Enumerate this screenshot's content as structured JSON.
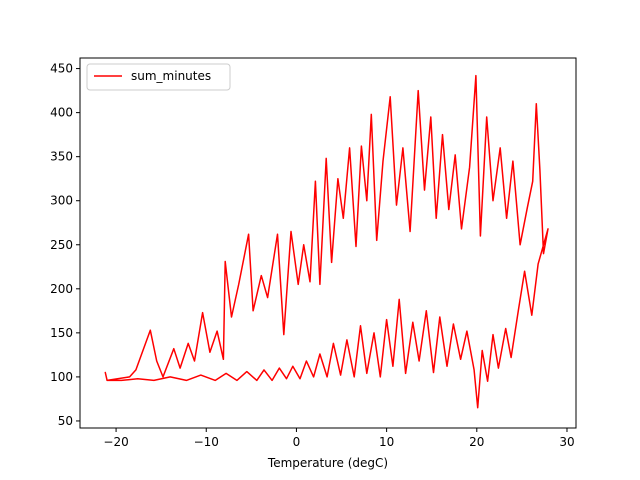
{
  "chart_data": {
    "type": "line",
    "title": "",
    "xlabel": "Temperature (degC)",
    "ylabel": "",
    "xlim": [
      -24,
      31
    ],
    "ylim": [
      42,
      462
    ],
    "xticks": [
      -20,
      -10,
      0,
      10,
      20,
      30
    ],
    "yticks": [
      50,
      100,
      150,
      200,
      250,
      300,
      350,
      400,
      450
    ],
    "xtick_labels": [
      "−20",
      "−10",
      "0",
      "10",
      "20",
      "30"
    ],
    "ytick_labels": [
      "50",
      "100",
      "150",
      "200",
      "250",
      "300",
      "350",
      "400",
      "450"
    ],
    "grid": false,
    "legend": {
      "position": "top-left",
      "entries": [
        "sum_minutes"
      ]
    },
    "series": [
      {
        "name": "sum_minutes",
        "color": "#ff0000",
        "points": [
          [
            -21.2,
            105
          ],
          [
            -21.0,
            96
          ],
          [
            -18.5,
            100
          ],
          [
            -17.8,
            108
          ],
          [
            -16.2,
            153
          ],
          [
            -15.5,
            118
          ],
          [
            -14.8,
            100
          ],
          [
            -13.6,
            132
          ],
          [
            -12.9,
            110
          ],
          [
            -12.0,
            138
          ],
          [
            -11.3,
            118
          ],
          [
            -10.4,
            173
          ],
          [
            -9.6,
            128
          ],
          [
            -8.8,
            152
          ],
          [
            -8.1,
            120
          ],
          [
            -7.9,
            231
          ],
          [
            -7.2,
            168
          ],
          [
            -6.4,
            205
          ],
          [
            -5.3,
            262
          ],
          [
            -4.8,
            175
          ],
          [
            -3.9,
            215
          ],
          [
            -3.2,
            190
          ],
          [
            -2.1,
            262
          ],
          [
            -1.4,
            148
          ],
          [
            -0.6,
            265
          ],
          [
            0.2,
            205
          ],
          [
            0.8,
            250
          ],
          [
            1.5,
            208
          ],
          [
            2.1,
            322
          ],
          [
            2.6,
            205
          ],
          [
            3.3,
            348
          ],
          [
            3.9,
            230
          ],
          [
            4.6,
            325
          ],
          [
            5.2,
            280
          ],
          [
            5.9,
            360
          ],
          [
            6.6,
            248
          ],
          [
            7.2,
            362
          ],
          [
            7.8,
            300
          ],
          [
            8.3,
            398
          ],
          [
            8.9,
            255
          ],
          [
            9.6,
            345
          ],
          [
            10.4,
            418
          ],
          [
            11.1,
            295
          ],
          [
            11.8,
            360
          ],
          [
            12.6,
            265
          ],
          [
            13.5,
            425
          ],
          [
            14.2,
            312
          ],
          [
            14.9,
            395
          ],
          [
            15.5,
            280
          ],
          [
            16.2,
            375
          ],
          [
            16.9,
            290
          ],
          [
            17.6,
            352
          ],
          [
            18.3,
            268
          ],
          [
            19.2,
            338
          ],
          [
            19.9,
            442
          ],
          [
            20.4,
            260
          ],
          [
            21.1,
            395
          ],
          [
            21.8,
            300
          ],
          [
            22.6,
            360
          ],
          [
            23.3,
            280
          ],
          [
            24.0,
            345
          ],
          [
            24.8,
            250
          ],
          [
            25.6,
            292
          ],
          [
            26.2,
            322
          ],
          [
            26.6,
            410
          ],
          [
            27.0,
            335
          ],
          [
            27.4,
            240
          ],
          [
            27.9,
            268
          ],
          [
            26.8,
            228
          ],
          [
            26.1,
            170
          ],
          [
            25.3,
            220
          ],
          [
            24.6,
            175
          ],
          [
            23.8,
            122
          ],
          [
            23.2,
            155
          ],
          [
            22.4,
            110
          ],
          [
            21.8,
            148
          ],
          [
            21.2,
            95
          ],
          [
            20.6,
            130
          ],
          [
            20.1,
            65
          ],
          [
            19.7,
            108
          ],
          [
            18.9,
            152
          ],
          [
            18.2,
            120
          ],
          [
            17.4,
            160
          ],
          [
            16.7,
            112
          ],
          [
            15.9,
            168
          ],
          [
            15.2,
            105
          ],
          [
            14.4,
            175
          ],
          [
            13.6,
            118
          ],
          [
            12.9,
            162
          ],
          [
            12.1,
            104
          ],
          [
            11.4,
            188
          ],
          [
            10.7,
            112
          ],
          [
            10.0,
            165
          ],
          [
            9.3,
            100
          ],
          [
            8.6,
            150
          ],
          [
            7.8,
            104
          ],
          [
            7.1,
            158
          ],
          [
            6.4,
            100
          ],
          [
            5.6,
            142
          ],
          [
            4.9,
            102
          ],
          [
            4.1,
            138
          ],
          [
            3.4,
            100
          ],
          [
            2.6,
            126
          ],
          [
            1.9,
            100
          ],
          [
            1.1,
            118
          ],
          [
            0.4,
            98
          ],
          [
            -0.4,
            112
          ],
          [
            -1.1,
            98
          ],
          [
            -1.9,
            110
          ],
          [
            -2.7,
            96
          ],
          [
            -3.6,
            108
          ],
          [
            -4.4,
            96
          ],
          [
            -5.5,
            106
          ],
          [
            -6.6,
            96
          ],
          [
            -7.8,
            104
          ],
          [
            -9.0,
            96
          ],
          [
            -10.6,
            102
          ],
          [
            -12.2,
            96
          ],
          [
            -14.0,
            100
          ],
          [
            -15.8,
            96
          ],
          [
            -17.6,
            98
          ],
          [
            -19.4,
            96
          ],
          [
            -21.0,
            96
          ]
        ]
      }
    ]
  }
}
